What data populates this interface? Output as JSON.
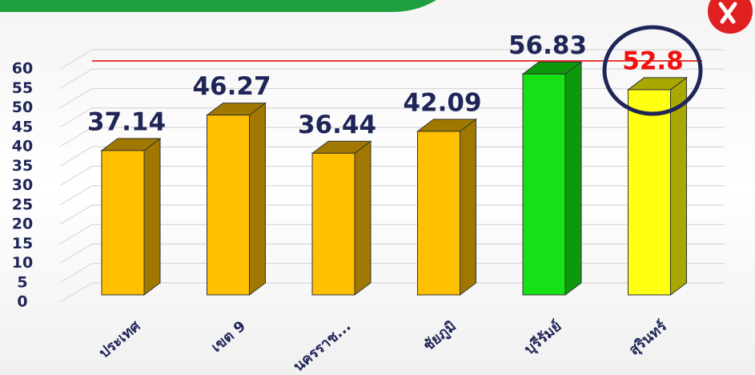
{
  "chart_data": {
    "type": "bar3d",
    "categories": [
      "ประเทศ",
      "เขต 9",
      "นครราช...",
      "ชัยภูมิ",
      "บุรีรัมย์",
      "สุรินทร์"
    ],
    "values": [
      37.14,
      46.27,
      36.44,
      42.09,
      56.83,
      52.8
    ],
    "colors": [
      "#FFC000",
      "#FFC000",
      "#FFC000",
      "#FFC000",
      "#16E016",
      "#FFFF10"
    ],
    "side_colors": [
      "#A07800",
      "#A07800",
      "#A07800",
      "#A07800",
      "#0C9A0C",
      "#A8A800"
    ],
    "label_colors": [
      "#1F2557",
      "#1F2557",
      "#1F2557",
      "#1F2557",
      "#1F2557",
      "#F01010"
    ],
    "ylim": [
      0,
      60
    ],
    "yticks": [
      0,
      5,
      10,
      15,
      20,
      25,
      30,
      35,
      40,
      45,
      50,
      55,
      60
    ],
    "grid": true
  }
}
